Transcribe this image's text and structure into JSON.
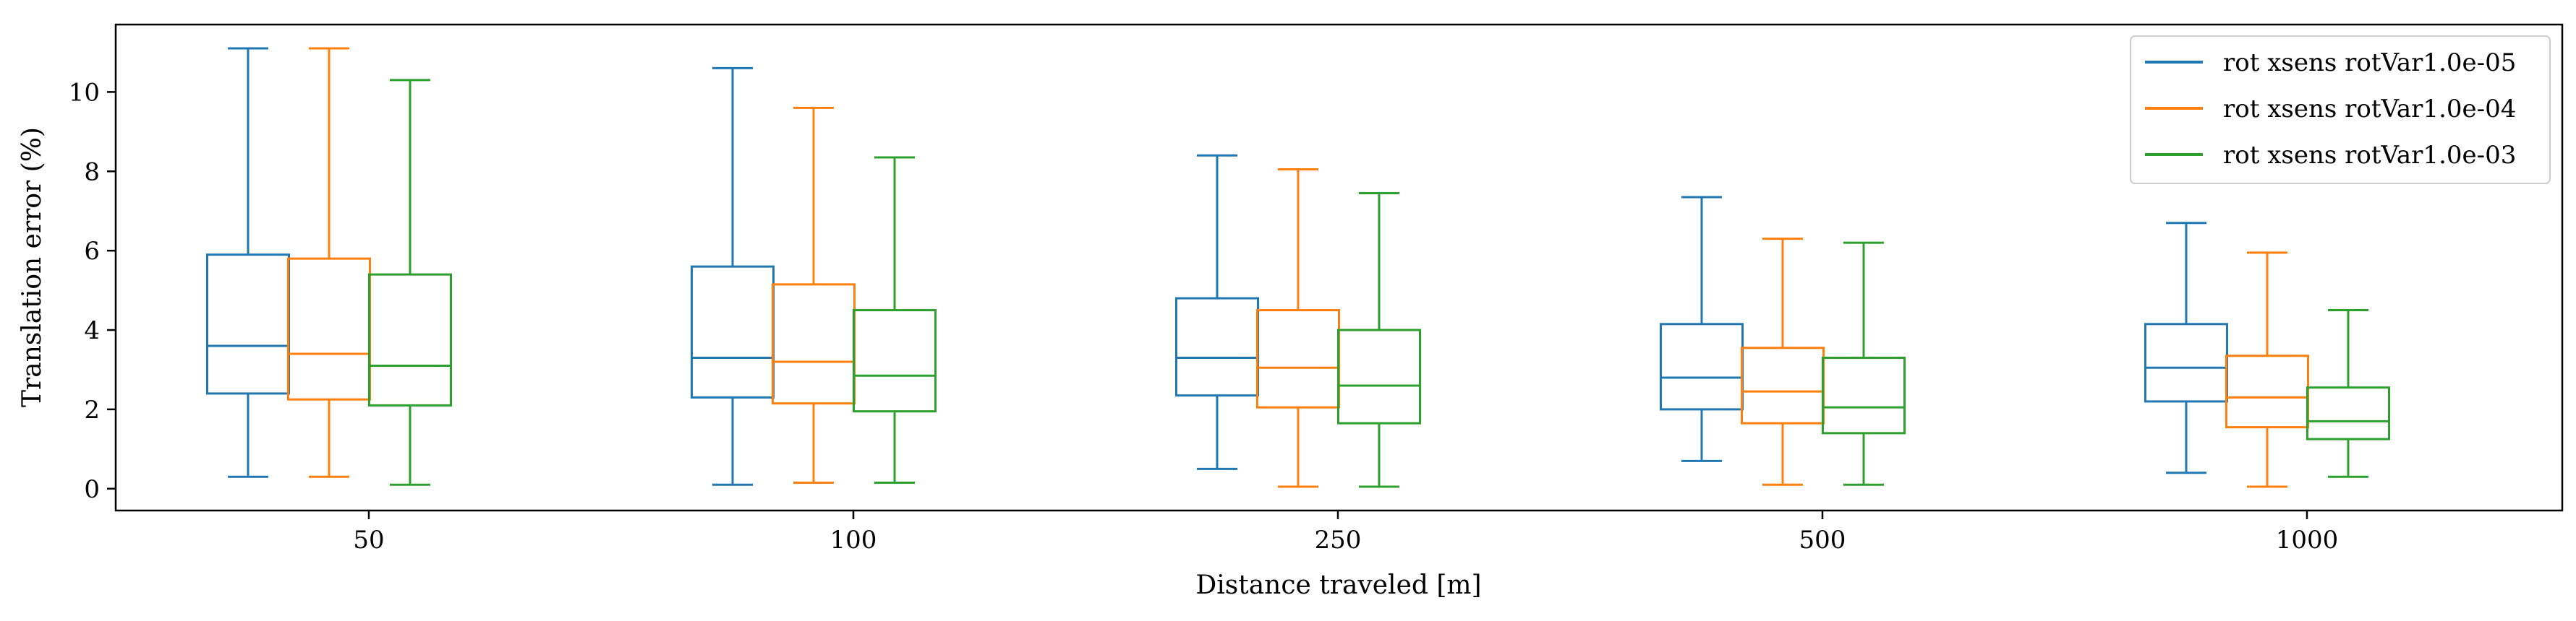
{
  "chart_data": {
    "type": "box",
    "title": "",
    "xlabel": "Distance traveled [m]",
    "ylabel": "Translation error (%)",
    "ylim": [
      -0.55,
      11.7
    ],
    "yticks": [
      "0",
      "2",
      "4",
      "6",
      "8",
      "10"
    ],
    "categories": [
      "50",
      "100",
      "250",
      "500",
      "1000"
    ],
    "grid": false,
    "legend_position": "top-right",
    "series": [
      {
        "name": "rot xsens rotVar1.0e-05",
        "color": "#1f77b4",
        "boxes": [
          {
            "whislo": 0.3,
            "q1": 2.4,
            "med": 3.6,
            "q3": 5.9,
            "whishi": 11.1
          },
          {
            "whislo": 0.1,
            "q1": 2.3,
            "med": 3.3,
            "q3": 5.6,
            "whishi": 10.6
          },
          {
            "whislo": 0.5,
            "q1": 2.35,
            "med": 3.3,
            "q3": 4.8,
            "whishi": 8.4
          },
          {
            "whislo": 0.7,
            "q1": 2.0,
            "med": 2.8,
            "q3": 4.15,
            "whishi": 7.35
          },
          {
            "whislo": 0.4,
            "q1": 2.2,
            "med": 3.05,
            "q3": 4.15,
            "whishi": 6.7
          }
        ]
      },
      {
        "name": "rot xsens rotVar1.0e-04",
        "color": "#ff7f0e",
        "boxes": [
          {
            "whislo": 0.3,
            "q1": 2.25,
            "med": 3.4,
            "q3": 5.8,
            "whishi": 11.1
          },
          {
            "whislo": 0.15,
            "q1": 2.15,
            "med": 3.2,
            "q3": 5.15,
            "whishi": 9.6
          },
          {
            "whislo": 0.05,
            "q1": 2.05,
            "med": 3.05,
            "q3": 4.5,
            "whishi": 8.05
          },
          {
            "whislo": 0.1,
            "q1": 1.65,
            "med": 2.45,
            "q3": 3.55,
            "whishi": 6.3
          },
          {
            "whislo": 0.05,
            "q1": 1.55,
            "med": 2.3,
            "q3": 3.35,
            "whishi": 5.95
          }
        ]
      },
      {
        "name": "rot xsens rotVar1.0e-03",
        "color": "#2ca02c",
        "boxes": [
          {
            "whislo": 0.1,
            "q1": 2.1,
            "med": 3.1,
            "q3": 5.4,
            "whishi": 10.3
          },
          {
            "whislo": 0.15,
            "q1": 1.95,
            "med": 2.85,
            "q3": 4.5,
            "whishi": 8.35
          },
          {
            "whislo": 0.05,
            "q1": 1.65,
            "med": 2.6,
            "q3": 4.0,
            "whishi": 7.45
          },
          {
            "whislo": 0.1,
            "q1": 1.4,
            "med": 2.05,
            "q3": 3.3,
            "whishi": 6.2
          },
          {
            "whislo": 0.3,
            "q1": 1.25,
            "med": 1.7,
            "q3": 2.55,
            "whishi": 4.5
          }
        ]
      }
    ]
  }
}
